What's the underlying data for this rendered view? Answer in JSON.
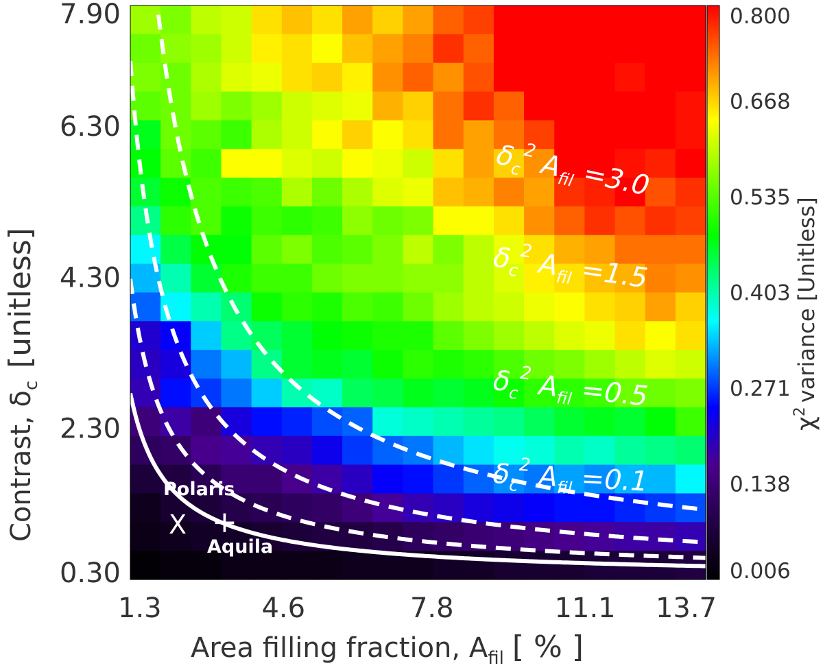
{
  "chart_data": {
    "type": "heatmap",
    "xlabel": "Area filling fraction, A",
    "xlabel_sub": "fil",
    "xlabel_unit": "[ % ]",
    "ylabel": "Contrast, δ",
    "ylabel_sub": "c",
    "ylabel_unit": "[unitless]",
    "colorbar_label_prefix": "χ",
    "colorbar_label_sup": "2",
    "colorbar_label": "variance [Unitless]",
    "x_ticks": [
      "1.3",
      "4.6",
      "7.8",
      "11.1",
      "13.7"
    ],
    "y_ticks": [
      "0.30",
      "2.30",
      "4.30",
      "6.30",
      "7.90"
    ],
    "colorbar_ticks": [
      "0.006",
      "0.138",
      "0.271",
      "0.403",
      "0.535",
      "0.668",
      "0.800"
    ],
    "xlim": [
      1.3,
      13.7
    ],
    "ylim": [
      0.3,
      7.9
    ],
    "colorbar_range": [
      0.006,
      0.8
    ],
    "colormap": "rainbow (black-purple-blue-cyan-green-yellow-red)",
    "grid_size": {
      "columns": 19,
      "rows": 20
    },
    "grid_note": "rows ordered from top (high contrast) to bottom (low contrast); values in χ² variance units",
    "values": [
      [
        0.58,
        0.56,
        0.6,
        0.61,
        0.66,
        0.68,
        0.66,
        0.7,
        0.67,
        0.7,
        0.74,
        0.76,
        0.8,
        0.8,
        0.8,
        0.8,
        0.8,
        0.8,
        0.8
      ],
      [
        0.55,
        0.57,
        0.58,
        0.61,
        0.65,
        0.66,
        0.64,
        0.68,
        0.7,
        0.72,
        0.77,
        0.74,
        0.8,
        0.8,
        0.8,
        0.8,
        0.8,
        0.8,
        0.8
      ],
      [
        0.56,
        0.55,
        0.59,
        0.62,
        0.63,
        0.66,
        0.67,
        0.65,
        0.71,
        0.74,
        0.71,
        0.75,
        0.8,
        0.8,
        0.8,
        0.8,
        0.79,
        0.8,
        0.8
      ],
      [
        0.54,
        0.55,
        0.58,
        0.56,
        0.58,
        0.61,
        0.62,
        0.63,
        0.69,
        0.67,
        0.73,
        0.77,
        0.74,
        0.8,
        0.8,
        0.8,
        0.8,
        0.8,
        0.79
      ],
      [
        0.47,
        0.55,
        0.54,
        0.52,
        0.59,
        0.61,
        0.64,
        0.67,
        0.64,
        0.66,
        0.73,
        0.7,
        0.73,
        0.76,
        0.8,
        0.8,
        0.8,
        0.8,
        0.79
      ],
      [
        0.48,
        0.54,
        0.52,
        0.64,
        0.64,
        0.62,
        0.61,
        0.64,
        0.63,
        0.61,
        0.66,
        0.7,
        0.67,
        0.71,
        0.8,
        0.8,
        0.79,
        0.78,
        0.8
      ],
      [
        0.46,
        0.49,
        0.53,
        0.52,
        0.53,
        0.59,
        0.55,
        0.59,
        0.62,
        0.63,
        0.68,
        0.69,
        0.72,
        0.7,
        0.77,
        0.78,
        0.8,
        0.75,
        0.77
      ],
      [
        0.42,
        0.51,
        0.53,
        0.49,
        0.52,
        0.51,
        0.52,
        0.57,
        0.55,
        0.56,
        0.64,
        0.64,
        0.66,
        0.71,
        0.74,
        0.77,
        0.75,
        0.77,
        0.76
      ],
      [
        0.36,
        0.45,
        0.48,
        0.48,
        0.54,
        0.56,
        0.53,
        0.54,
        0.56,
        0.6,
        0.56,
        0.6,
        0.63,
        0.66,
        0.69,
        0.7,
        0.73,
        0.73,
        0.73
      ],
      [
        0.33,
        0.4,
        0.46,
        0.5,
        0.52,
        0.52,
        0.55,
        0.56,
        0.56,
        0.57,
        0.57,
        0.6,
        0.62,
        0.65,
        0.66,
        0.68,
        0.69,
        0.72,
        0.71
      ],
      [
        0.29,
        0.36,
        0.4,
        0.43,
        0.49,
        0.51,
        0.5,
        0.53,
        0.52,
        0.55,
        0.58,
        0.6,
        0.61,
        0.63,
        0.64,
        0.66,
        0.67,
        0.7,
        0.67
      ],
      [
        0.21,
        0.24,
        0.34,
        0.42,
        0.44,
        0.46,
        0.48,
        0.49,
        0.5,
        0.5,
        0.54,
        0.56,
        0.58,
        0.6,
        0.62,
        0.63,
        0.66,
        0.64,
        0.66
      ],
      [
        0.2,
        0.22,
        0.3,
        0.33,
        0.42,
        0.46,
        0.47,
        0.46,
        0.49,
        0.51,
        0.5,
        0.51,
        0.53,
        0.55,
        0.56,
        0.58,
        0.6,
        0.62,
        0.61
      ],
      [
        0.19,
        0.25,
        0.27,
        0.3,
        0.34,
        0.4,
        0.39,
        0.44,
        0.45,
        0.47,
        0.46,
        0.47,
        0.49,
        0.51,
        0.51,
        0.52,
        0.55,
        0.55,
        0.56
      ],
      [
        0.14,
        0.18,
        0.14,
        0.22,
        0.25,
        0.26,
        0.28,
        0.29,
        0.38,
        0.39,
        0.4,
        0.41,
        0.42,
        0.44,
        0.46,
        0.47,
        0.46,
        0.48,
        0.52
      ],
      [
        0.11,
        0.12,
        0.16,
        0.17,
        0.19,
        0.2,
        0.23,
        0.27,
        0.29,
        0.3,
        0.33,
        0.35,
        0.37,
        0.38,
        0.4,
        0.39,
        0.41,
        0.42,
        0.43
      ],
      [
        0.07,
        0.08,
        0.1,
        0.13,
        0.13,
        0.16,
        0.18,
        0.2,
        0.24,
        0.25,
        0.27,
        0.29,
        0.31,
        0.3,
        0.32,
        0.31,
        0.33,
        0.33,
        0.36
      ],
      [
        0.04,
        0.06,
        0.07,
        0.09,
        0.1,
        0.11,
        0.12,
        0.14,
        0.17,
        0.19,
        0.2,
        0.22,
        0.23,
        0.24,
        0.25,
        0.25,
        0.26,
        0.27,
        0.28
      ],
      [
        0.03,
        0.04,
        0.05,
        0.05,
        0.06,
        0.07,
        0.08,
        0.08,
        0.09,
        0.11,
        0.12,
        0.13,
        0.14,
        0.15,
        0.16,
        0.17,
        0.18,
        0.18,
        0.19
      ],
      [
        0.01,
        0.02,
        0.02,
        0.03,
        0.03,
        0.03,
        0.03,
        0.04,
        0.04,
        0.04,
        0.05,
        0.05,
        0.06,
        0.06,
        0.06,
        0.07,
        0.07,
        0.07,
        0.08
      ]
    ],
    "curves": [
      {
        "label_prefix": "δ",
        "label_sub": "c",
        "label_sup": "2",
        "label_mid": " A",
        "label_sub2": "fil",
        "label_value": " =0.1",
        "product": 0.1,
        "style": "solid",
        "color": "#ffffff"
      },
      {
        "label_prefix": "δ",
        "label_sub": "c",
        "label_sup": "2",
        "label_mid": " A",
        "label_sub2": "fil",
        "label_value": " =0.5",
        "product": 0.5,
        "style": "dashed",
        "color": "#ffffff"
      },
      {
        "label_prefix": "δ",
        "label_sub": "c",
        "label_sup": "2",
        "label_mid": " A",
        "label_sub2": "fil",
        "label_value": " =1.5",
        "product": 1.5,
        "style": "dashed",
        "color": "#ffffff"
      },
      {
        "label_prefix": "δ",
        "label_sub": "c",
        "label_sup": "2",
        "label_mid": " A",
        "label_sub2": "fil",
        "label_value": " =3.0",
        "product": 3.0,
        "style": "dashed",
        "color": "#ffffff"
      }
    ],
    "markers": [
      {
        "name": "Polaris",
        "symbol": "X",
        "x": 1.9,
        "y": 1.1
      },
      {
        "name": "Aquila",
        "symbol": "+",
        "x": 2.6,
        "y": 1.1
      }
    ]
  }
}
